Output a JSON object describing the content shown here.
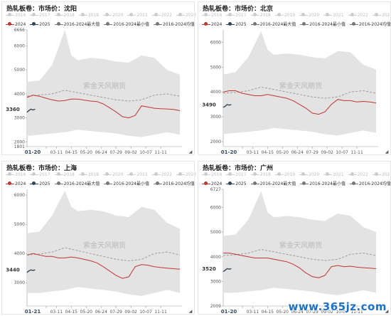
{
  "panels": [
    {
      "title": "热轧板卷：市场价：沈阳",
      "current": "3360",
      "date_label": "01-20"
    },
    {
      "title": "热轧板卷：市场价：北京",
      "current": "3490",
      "date_label": "01-20"
    },
    {
      "title": "热轧板卷：市场价：上海",
      "current": "3440",
      "date_label": "01-21"
    },
    {
      "title": "热轧板卷：市场价：广州",
      "current": "3520",
      "date_label": "01-20"
    }
  ],
  "years_hidden": [
    "2016",
    "2017",
    "2018",
    "2019",
    "2020",
    "2021",
    "2022",
    "2023"
  ],
  "legend": [
    {
      "label": "2024",
      "color": "#c23531"
    },
    {
      "label": "2025",
      "color": "#2f4554"
    },
    {
      "label": "2016-2024最大值",
      "color": "#777777"
    },
    {
      "label": "2016-2024最小值",
      "color": "#777777"
    },
    {
      "label": "2016-2024均值",
      "color": "#777777"
    }
  ],
  "watermark": "紫金天风期货",
  "site_watermark": "www.365jz.com",
  "colors": {
    "s2024": "#c23531",
    "s2025": "#2f4554",
    "band": "#e3e3e3",
    "mean": "#9e9e9e",
    "hidden_year": "#cccccc"
  },
  "chart_data": [
    {
      "type": "area",
      "title": "热轧板卷：市场价：沈阳",
      "ylim": [
        1801,
        6666
      ],
      "y_ticks": [
        1801,
        2000,
        3000,
        4000,
        5000,
        6000,
        6666
      ],
      "x_ticks": [
        "03-11",
        "04-15",
        "05-20",
        "06-24",
        "07-29",
        "09-02",
        "10-07",
        "11-11"
      ],
      "series": [
        {
          "name": "2024",
          "x": [
            1,
            15,
            30,
            45,
            60,
            75,
            90,
            105,
            120,
            135,
            150,
            165,
            180,
            195,
            210,
            225,
            240,
            255,
            270,
            285,
            300,
            315,
            330,
            345,
            360
          ],
          "values": [
            3850,
            3950,
            3900,
            3820,
            3750,
            3700,
            3720,
            3780,
            3780,
            3740,
            3700,
            3680,
            3580,
            3420,
            3250,
            3050,
            3000,
            3100,
            3500,
            3450,
            3400,
            3380,
            3370,
            3350,
            3300
          ]
        },
        {
          "name": "2025",
          "x": [
            1,
            5,
            10,
            15,
            20
          ],
          "values": [
            3230,
            3300,
            3360,
            3330,
            3360
          ]
        },
        {
          "name": "2016-2024最大值",
          "x": [
            1,
            30,
            60,
            90,
            105,
            120,
            150,
            180,
            210,
            240,
            270,
            300,
            330,
            360
          ],
          "values": [
            4500,
            4550,
            5200,
            6666,
            5600,
            5400,
            5500,
            5450,
            5350,
            5300,
            5600,
            5500,
            5000,
            4800
          ]
        },
        {
          "name": "2016-2024最小值",
          "x": [
            1,
            30,
            60,
            90,
            120,
            150,
            180,
            210,
            240,
            270,
            300,
            330,
            360
          ],
          "values": [
            2250,
            2300,
            2350,
            2400,
            2500,
            2450,
            2400,
            2350,
            2250,
            2200,
            2300,
            2400,
            2300
          ]
        },
        {
          "name": "2016-2024均值",
          "x": [
            1,
            30,
            60,
            90,
            120,
            150,
            180,
            210,
            240,
            270,
            300,
            330,
            360
          ],
          "values": [
            3900,
            3950,
            4000,
            4150,
            4050,
            3950,
            3850,
            3750,
            3700,
            3750,
            3950,
            4000,
            3900
          ]
        }
      ]
    },
    {
      "type": "area",
      "title": "热轧板卷：市场价：北京",
      "ylim": [
        1800,
        6500
      ],
      "y_ticks": [
        2000,
        3000,
        4000,
        5000,
        6000
      ],
      "x_ticks": [
        "03-11",
        "04-15",
        "05-20",
        "06-24",
        "07-29",
        "09-02",
        "10-07",
        "11-11"
      ],
      "series": [
        {
          "name": "2024",
          "x": [
            1,
            15,
            30,
            45,
            60,
            75,
            90,
            105,
            120,
            135,
            150,
            165,
            180,
            195,
            210,
            225,
            240,
            255,
            270,
            285,
            300,
            315,
            330,
            345,
            360
          ],
          "values": [
            4000,
            4050,
            4050,
            3950,
            3900,
            3850,
            3850,
            3900,
            3850,
            3800,
            3750,
            3650,
            3500,
            3350,
            3150,
            3100,
            3200,
            3500,
            3700,
            3650,
            3650,
            3600,
            3620,
            3600,
            3560
          ]
        },
        {
          "name": "2025",
          "x": [
            1,
            5,
            10,
            15,
            20
          ],
          "values": [
            3380,
            3420,
            3490,
            3470,
            3490
          ]
        },
        {
          "name": "2016-2024最大值",
          "x": [
            1,
            30,
            60,
            90,
            105,
            120,
            150,
            180,
            210,
            240,
            270,
            300,
            330,
            360
          ],
          "values": [
            4700,
            4800,
            5400,
            6450,
            5700,
            5500,
            5550,
            5500,
            5400,
            5350,
            5650,
            5600,
            5100,
            4900
          ]
        },
        {
          "name": "2016-2024最小值",
          "x": [
            1,
            30,
            60,
            90,
            120,
            150,
            180,
            210,
            240,
            270,
            300,
            330,
            360
          ],
          "values": [
            2300,
            2350,
            2400,
            2450,
            2550,
            2500,
            2450,
            2400,
            2300,
            2250,
            2350,
            2450,
            2350
          ]
        },
        {
          "name": "2016-2024均值",
          "x": [
            1,
            30,
            60,
            90,
            120,
            150,
            180,
            210,
            240,
            270,
            300,
            330,
            360
          ],
          "values": [
            3950,
            3980,
            4050,
            4200,
            4100,
            4000,
            3900,
            3800,
            3750,
            3800,
            4000,
            4050,
            3950
          ]
        }
      ]
    },
    {
      "type": "area",
      "title": "热轧板卷：市场价：上海",
      "ylim": [
        2200,
        6200
      ],
      "y_ticks": [
        3000,
        4000,
        5000,
        6000
      ],
      "x_ticks": [
        "03-11",
        "04-15",
        "05-20",
        "06-24",
        "07-29",
        "09-02",
        "10-07",
        "11-11"
      ],
      "series": [
        {
          "name": "2024",
          "x": [
            1,
            15,
            30,
            45,
            60,
            75,
            90,
            105,
            120,
            135,
            150,
            165,
            180,
            195,
            210,
            225,
            240,
            255,
            270,
            285,
            300,
            315,
            330,
            345,
            360
          ],
          "values": [
            3950,
            4000,
            3950,
            3900,
            3900,
            3850,
            3850,
            3880,
            3850,
            3800,
            3750,
            3680,
            3550,
            3400,
            3250,
            3150,
            3200,
            3550,
            3620,
            3600,
            3550,
            3520,
            3500,
            3480,
            3460
          ]
        },
        {
          "name": "2025",
          "x": [
            1,
            5,
            10,
            15,
            20
          ],
          "values": [
            3350,
            3400,
            3440,
            3420,
            3440
          ]
        },
        {
          "name": "2016-2024最大值",
          "x": [
            1,
            30,
            60,
            90,
            105,
            120,
            150,
            180,
            210,
            240,
            270,
            300,
            330,
            360
          ],
          "values": [
            4700,
            4750,
            5300,
            6150,
            5600,
            5450,
            5500,
            5450,
            5300,
            5250,
            5600,
            5500,
            5050,
            4850
          ]
        },
        {
          "name": "2016-2024最小值",
          "x": [
            1,
            30,
            60,
            90,
            120,
            150,
            180,
            210,
            240,
            270,
            300,
            330,
            360
          ],
          "values": [
            2650,
            2650,
            2700,
            2750,
            2850,
            2800,
            2750,
            2700,
            2600,
            2550,
            2650,
            2750,
            2650
          ]
        },
        {
          "name": "2016-2024均值",
          "x": [
            1,
            30,
            60,
            90,
            120,
            150,
            180,
            210,
            240,
            270,
            300,
            330,
            360
          ],
          "values": [
            3950,
            3980,
            4050,
            4200,
            4100,
            4000,
            3900,
            3800,
            3750,
            3800,
            4000,
            4050,
            3950
          ]
        }
      ]
    },
    {
      "type": "area",
      "title": "热轧板卷：市场价：广州",
      "ylim": [
        2009,
        6727
      ],
      "y_ticks": [
        2009,
        3000,
        4000,
        5000,
        6000,
        6727
      ],
      "x_ticks": [
        "03-11",
        "04-15",
        "05-20",
        "06-24",
        "07-29",
        "09-02",
        "10-07",
        "11-11"
      ],
      "series": [
        {
          "name": "2024",
          "x": [
            1,
            15,
            30,
            45,
            60,
            75,
            90,
            105,
            120,
            135,
            150,
            165,
            180,
            195,
            210,
            225,
            240,
            255,
            270,
            285,
            300,
            315,
            330,
            345,
            360
          ],
          "values": [
            4150,
            4150,
            4100,
            4050,
            4000,
            3950,
            3950,
            3950,
            3900,
            3850,
            3800,
            3700,
            3550,
            3350,
            3200,
            3150,
            3250,
            3600,
            3650,
            3600,
            3620,
            3580,
            3560,
            3540,
            3520
          ]
        },
        {
          "name": "2025",
          "x": [
            1,
            5,
            10,
            15,
            20
          ],
          "values": [
            3400,
            3450,
            3520,
            3500,
            3520
          ]
        },
        {
          "name": "2016-2024最大值",
          "x": [
            1,
            30,
            60,
            90,
            105,
            120,
            150,
            180,
            210,
            240,
            270,
            300,
            330,
            360
          ],
          "values": [
            4850,
            4900,
            5500,
            6650,
            5800,
            5600,
            5650,
            5600,
            5500,
            5450,
            5750,
            5650,
            5200,
            5000
          ]
        },
        {
          "name": "2016-2024最小值",
          "x": [
            1,
            30,
            60,
            90,
            120,
            150,
            180,
            210,
            240,
            270,
            300,
            330,
            360
          ],
          "values": [
            2550,
            2550,
            2600,
            2650,
            2750,
            2700,
            2650,
            2600,
            2500,
            2450,
            2550,
            2650,
            2550
          ]
        },
        {
          "name": "2016-2024均值",
          "x": [
            1,
            30,
            60,
            90,
            120,
            150,
            180,
            210,
            240,
            270,
            300,
            330,
            360
          ],
          "values": [
            4050,
            4080,
            4150,
            4300,
            4200,
            4100,
            4000,
            3900,
            3850,
            3900,
            4100,
            4150,
            4050
          ]
        }
      ]
    }
  ]
}
